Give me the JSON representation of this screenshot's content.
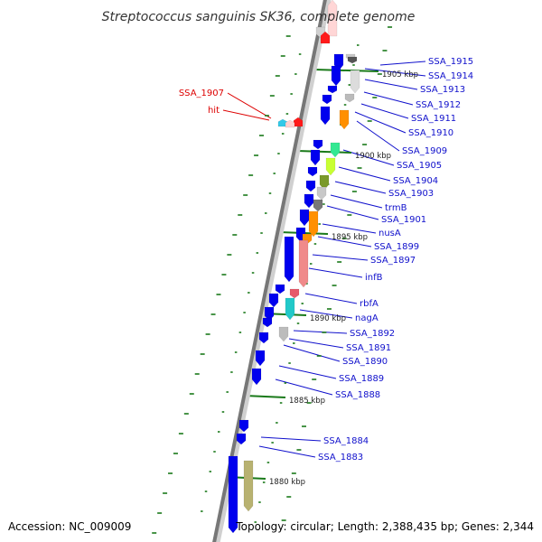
{
  "title": "Streptococcus sanguinis SK36, complete genome",
  "footer": {
    "accession": "Accession: NC_009009",
    "summary": "Topology: circular; Length: 2,388,435 bp; Genes: 2,344"
  },
  "kbp_markers": [
    "1905 kbp",
    "1900 kbp",
    "1895 kbp",
    "1890 kbp",
    "1885 kbp",
    "1880 kbp"
  ],
  "left_labels": [
    "SSA_1907",
    "hit"
  ],
  "right_labels": [
    "SSA_1915",
    "SSA_1914",
    "SSA_1913",
    "SSA_1912",
    "SSA_1911",
    "SSA_1910",
    "SSA_1909",
    "SSA_1905",
    "SSA_1904",
    "SSA_1903",
    "trmB",
    "SSA_1901",
    "nusA",
    "SSA_1899",
    "SSA_1897",
    "infB",
    "rbfA",
    "nagA",
    "SSA_1892",
    "SSA_1891",
    "SSA_1890",
    "SSA_1889",
    "SSA_1888",
    "SSA_1884",
    "SSA_1883"
  ],
  "colors": {
    "forward_gene": "#0000ee",
    "right_label": "#1010cc",
    "left_label": "#dd0000",
    "backbone": "#777777",
    "tick_green": "#1a7a1a"
  }
}
